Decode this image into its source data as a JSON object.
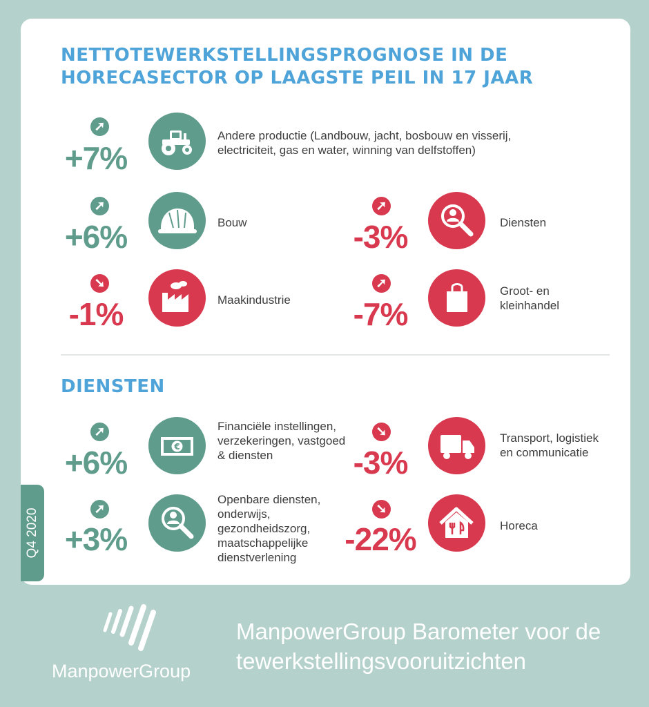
{
  "title": "NETTOTEWERKSTELLINGSPROGNOSE IN DE HORECASECTOR OP LAAGSTE PEIL IN 17 JAAR",
  "sectors": [
    {
      "pct": "+7%",
      "trend": "up",
      "tone": "green",
      "icon": "tractor-icon",
      "label": "Andere productie (Landbouw, jacht, bosbouw en visserij, electriciteit, gas en water, winning van delfstoffen)"
    },
    {
      "pct": "+6%",
      "trend": "up",
      "tone": "green",
      "icon": "hard-hat-icon",
      "label": "Bouw"
    },
    {
      "pct": "-3%",
      "trend": "up",
      "tone": "red",
      "icon": "person-magnifier-icon",
      "label": "Diensten"
    },
    {
      "pct": "-1%",
      "trend": "down",
      "tone": "red",
      "icon": "factory-icon",
      "label": "Maakindustrie"
    },
    {
      "pct": "-7%",
      "trend": "up",
      "tone": "red",
      "icon": "shopping-bag-icon",
      "label": "Groot- en kleinhandel"
    }
  ],
  "services_title": "DIENSTEN",
  "services": [
    {
      "pct": "+6%",
      "trend": "up",
      "tone": "green",
      "icon": "euro-banknote-icon",
      "label": "Financiële instellingen, verzekeringen, vastgoed & diensten"
    },
    {
      "pct": "-3%",
      "trend": "down",
      "tone": "red",
      "icon": "truck-icon",
      "label": "Transport, logistiek en communicatie"
    },
    {
      "pct": "+3%",
      "trend": "up",
      "tone": "green",
      "icon": "person-magnifier-icon",
      "label": "Openbare diensten, onderwijs, gezondheidszorg, maatschappelijke dienstverlening"
    },
    {
      "pct": "-22%",
      "trend": "down",
      "tone": "red",
      "icon": "house-cutlery-icon",
      "label": "Horeca"
    }
  ],
  "quarter_tab": "Q4 2020",
  "brand": "ManpowerGroup",
  "footer_title": "ManpowerGroup Barometer voor de tewerkstellingsvooruitzichten",
  "colors": {
    "background": "#b5d1cb",
    "accent_blue": "#4ea4d8",
    "positive_green": "#5f9c8c",
    "negative_red": "#d8394e"
  }
}
